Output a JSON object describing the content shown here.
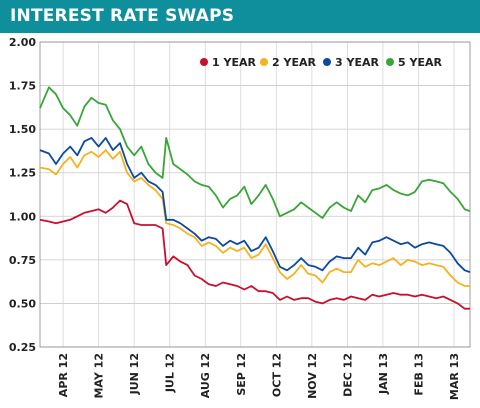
{
  "header": {
    "title": "INTEREST RATE SWAPS"
  },
  "chart_data": {
    "type": "line",
    "title": "INTEREST RATE SWAPS",
    "xlabel": "",
    "ylabel": "",
    "ylim": [
      0.25,
      2.0
    ],
    "yticks": [
      "2.00",
      "1.75",
      "1.50",
      "1.25",
      "1.00",
      "0.75",
      "0.50",
      "0.25"
    ],
    "ytick_values": [
      2.0,
      1.75,
      1.5,
      1.25,
      1.0,
      0.75,
      0.5,
      0.25
    ],
    "x_tick_labels": [
      "APR 12",
      "MAY 12",
      "JUN 12",
      "JUL 12",
      "AUG 12",
      "SEP 12",
      "OCT 12",
      "NOV 12",
      "DEC 12",
      "JAN 13",
      "FEB 13",
      "MAR 13"
    ],
    "x_tick_positions": [
      1,
      2,
      3,
      4,
      5,
      6,
      7,
      8,
      9,
      10,
      11,
      12
    ],
    "xlim": [
      0.35,
      12.45
    ],
    "grid": true,
    "legend": "top-right",
    "x": [
      0.35,
      0.6,
      0.8,
      1.0,
      1.2,
      1.4,
      1.6,
      1.8,
      2.0,
      2.2,
      2.4,
      2.6,
      2.8,
      3.0,
      3.2,
      3.4,
      3.6,
      3.8,
      3.9,
      4.1,
      4.3,
      4.5,
      4.7,
      4.9,
      5.1,
      5.3,
      5.5,
      5.7,
      5.9,
      6.1,
      6.3,
      6.5,
      6.7,
      6.9,
      7.1,
      7.3,
      7.5,
      7.7,
      7.9,
      8.1,
      8.3,
      8.5,
      8.7,
      8.9,
      9.1,
      9.3,
      9.5,
      9.7,
      9.9,
      10.1,
      10.3,
      10.5,
      10.7,
      10.9,
      11.1,
      11.3,
      11.5,
      11.7,
      11.9,
      12.1,
      12.3,
      12.45
    ],
    "series": [
      {
        "name": "1 YEAR",
        "color": "#c8102e",
        "values": [
          0.98,
          0.97,
          0.96,
          0.97,
          0.98,
          1.0,
          1.02,
          1.03,
          1.04,
          1.02,
          1.05,
          1.09,
          1.07,
          0.96,
          0.95,
          0.95,
          0.95,
          0.93,
          0.72,
          0.77,
          0.74,
          0.72,
          0.66,
          0.64,
          0.61,
          0.6,
          0.62,
          0.61,
          0.6,
          0.58,
          0.6,
          0.57,
          0.57,
          0.56,
          0.52,
          0.54,
          0.52,
          0.53,
          0.53,
          0.51,
          0.5,
          0.52,
          0.53,
          0.52,
          0.54,
          0.53,
          0.52,
          0.55,
          0.54,
          0.55,
          0.56,
          0.55,
          0.55,
          0.54,
          0.55,
          0.54,
          0.53,
          0.54,
          0.52,
          0.5,
          0.47,
          0.47
        ]
      },
      {
        "name": "2 YEAR",
        "color": "#f5b21f",
        "values": [
          1.28,
          1.27,
          1.24,
          1.3,
          1.34,
          1.28,
          1.35,
          1.37,
          1.34,
          1.38,
          1.33,
          1.37,
          1.25,
          1.2,
          1.22,
          1.18,
          1.15,
          1.1,
          0.96,
          0.95,
          0.93,
          0.9,
          0.88,
          0.83,
          0.85,
          0.83,
          0.79,
          0.82,
          0.8,
          0.82,
          0.76,
          0.78,
          0.84,
          0.76,
          0.68,
          0.64,
          0.67,
          0.72,
          0.67,
          0.66,
          0.62,
          0.68,
          0.7,
          0.68,
          0.68,
          0.75,
          0.71,
          0.73,
          0.72,
          0.74,
          0.76,
          0.72,
          0.75,
          0.74,
          0.72,
          0.73,
          0.72,
          0.71,
          0.66,
          0.62,
          0.6,
          0.6
        ]
      },
      {
        "name": "3 YEAR",
        "color": "#0b4a9e",
        "values": [
          1.38,
          1.36,
          1.3,
          1.36,
          1.4,
          1.35,
          1.43,
          1.45,
          1.4,
          1.45,
          1.38,
          1.42,
          1.3,
          1.22,
          1.25,
          1.2,
          1.18,
          1.14,
          0.98,
          0.98,
          0.96,
          0.93,
          0.9,
          0.86,
          0.88,
          0.87,
          0.83,
          0.86,
          0.84,
          0.86,
          0.8,
          0.82,
          0.88,
          0.8,
          0.71,
          0.69,
          0.72,
          0.76,
          0.72,
          0.71,
          0.69,
          0.74,
          0.77,
          0.76,
          0.76,
          0.82,
          0.78,
          0.85,
          0.86,
          0.88,
          0.86,
          0.84,
          0.85,
          0.82,
          0.84,
          0.85,
          0.84,
          0.83,
          0.79,
          0.73,
          0.69,
          0.68
        ]
      },
      {
        "name": "5 YEAR",
        "color": "#3aa537",
        "values": [
          1.62,
          1.74,
          1.7,
          1.62,
          1.58,
          1.52,
          1.63,
          1.68,
          1.65,
          1.64,
          1.55,
          1.5,
          1.4,
          1.35,
          1.4,
          1.3,
          1.25,
          1.22,
          1.45,
          1.3,
          1.27,
          1.24,
          1.2,
          1.18,
          1.17,
          1.12,
          1.05,
          1.1,
          1.12,
          1.17,
          1.07,
          1.12,
          1.18,
          1.1,
          1.0,
          1.02,
          1.04,
          1.08,
          1.05,
          1.02,
          0.99,
          1.05,
          1.08,
          1.05,
          1.03,
          1.12,
          1.08,
          1.15,
          1.16,
          1.18,
          1.15,
          1.13,
          1.12,
          1.14,
          1.2,
          1.21,
          1.2,
          1.19,
          1.14,
          1.1,
          1.04,
          1.03
        ]
      }
    ]
  }
}
